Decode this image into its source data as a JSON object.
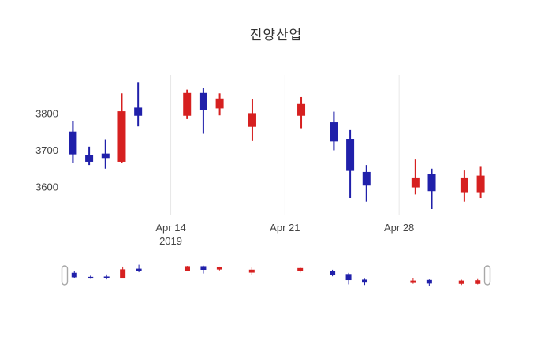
{
  "chart_data": {
    "type": "candlestick",
    "title": "진양산업",
    "xlabel": "",
    "ylabel": "",
    "legend": "none",
    "grid": "vertical-only",
    "background_color": "#ffffff",
    "grid_color": "#e8e8e8",
    "axis_text_color": "#444444",
    "increasing_color": "#d62020",
    "decreasing_color": "#2020aa",
    "y_ticks": [
      3600,
      3700,
      3800
    ],
    "y_range": [
      3525,
      3905
    ],
    "x_range_days": [
      7.4,
      33.6
    ],
    "x_ticks": [
      {
        "label": "Apr 14",
        "sublabel": "2019",
        "day": 14
      },
      {
        "label": "Apr 21",
        "sublabel": "",
        "day": 21
      },
      {
        "label": "Apr 28",
        "sublabel": "",
        "day": 28
      }
    ],
    "rangeslider": true,
    "candles": [
      {
        "date": "2019-04-08",
        "day": 8,
        "open": 3750,
        "high": 3780,
        "low": 3665,
        "close": 3690
      },
      {
        "date": "2019-04-09",
        "day": 9,
        "open": 3685,
        "high": 3710,
        "low": 3660,
        "close": 3670
      },
      {
        "date": "2019-04-10",
        "day": 10,
        "open": 3690,
        "high": 3730,
        "low": 3650,
        "close": 3680
      },
      {
        "date": "2019-04-11",
        "day": 11,
        "open": 3670,
        "high": 3855,
        "low": 3665,
        "close": 3805
      },
      {
        "date": "2019-04-12",
        "day": 12,
        "open": 3815,
        "high": 3885,
        "low": 3765,
        "close": 3795
      },
      {
        "date": "2019-04-15",
        "day": 15,
        "open": 3795,
        "high": 3865,
        "low": 3785,
        "close": 3855
      },
      {
        "date": "2019-04-16",
        "day": 16,
        "open": 3855,
        "high": 3870,
        "low": 3745,
        "close": 3810
      },
      {
        "date": "2019-04-17",
        "day": 17,
        "open": 3815,
        "high": 3855,
        "low": 3795,
        "close": 3840
      },
      {
        "date": "2019-04-19",
        "day": 19,
        "open": 3765,
        "high": 3840,
        "low": 3725,
        "close": 3800
      },
      {
        "date": "2019-04-22",
        "day": 22,
        "open": 3795,
        "high": 3845,
        "low": 3760,
        "close": 3825
      },
      {
        "date": "2019-04-24",
        "day": 24,
        "open": 3775,
        "high": 3805,
        "low": 3700,
        "close": 3725
      },
      {
        "date": "2019-04-25",
        "day": 25,
        "open": 3730,
        "high": 3755,
        "low": 3570,
        "close": 3645
      },
      {
        "date": "2019-04-26",
        "day": 26,
        "open": 3640,
        "high": 3660,
        "low": 3560,
        "close": 3605
      },
      {
        "date": "2019-04-29",
        "day": 29,
        "open": 3600,
        "high": 3675,
        "low": 3580,
        "close": 3625
      },
      {
        "date": "2019-04-30",
        "day": 30,
        "open": 3635,
        "high": 3650,
        "low": 3540,
        "close": 3590
      },
      {
        "date": "2019-05-02",
        "day": 32,
        "open": 3585,
        "high": 3645,
        "low": 3560,
        "close": 3625
      },
      {
        "date": "2019-05-03",
        "day": 33,
        "open": 3585,
        "high": 3655,
        "low": 3570,
        "close": 3630
      }
    ]
  }
}
